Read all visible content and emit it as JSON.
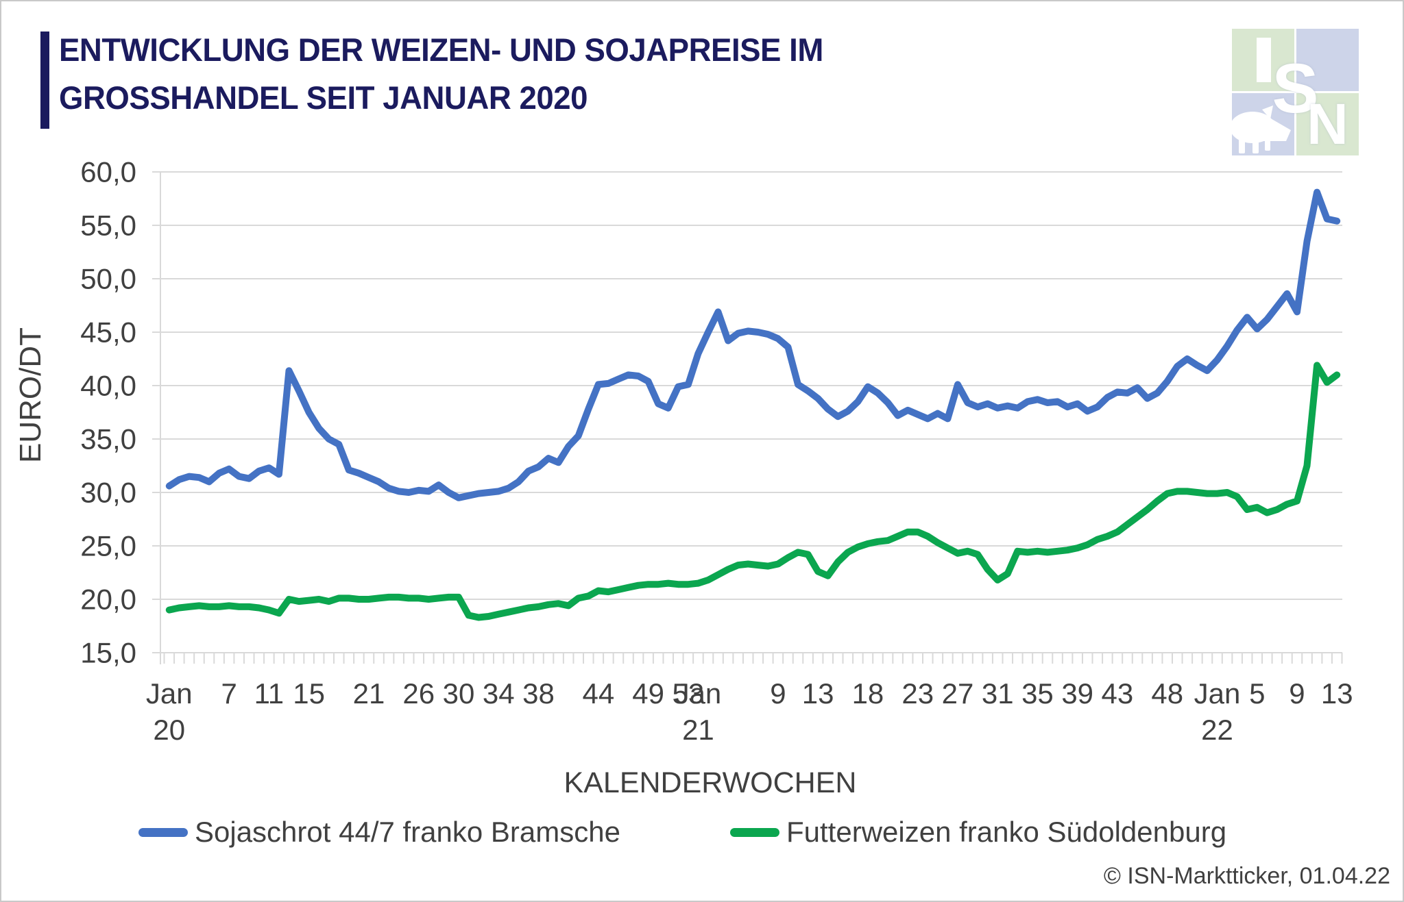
{
  "header": {
    "title_line1": "ENTWICKLUNG DER WEIZEN- UND SOJAPREISE IM",
    "title_line2": "GROSSHANDEL SEIT JANUAR 2020"
  },
  "logo": {
    "letters": [
      "I",
      "S",
      "N"
    ],
    "colors": {
      "green": "#d9e7d0",
      "lavender": "#cdd4e9",
      "glyph": "#ffffff"
    }
  },
  "footer": {
    "copyright": "© ISN-Marktticker, 01.04.22"
  },
  "chart_data": {
    "type": "line",
    "title": "ENTWICKLUNG DER WEIZEN- UND SOJAPREISE IM GROSSHANDEL SEIT JANUAR 2020",
    "xlabel": "KALENDERWOCHEN",
    "ylabel": "EURO/DT",
    "ylim": [
      15,
      60
    ],
    "ytick_step": 5,
    "ytick_labels": [
      "15,0",
      "20,0",
      "25,0",
      "30,0",
      "35,0",
      "40,0",
      "45,0",
      "50,0",
      "55,0",
      "60,0"
    ],
    "grid": "horizontal",
    "legend_position": "bottom",
    "n_points": 118,
    "x_description": "weekly values, calendar week 1/2020 to calendar week 13/2022",
    "x_ticks": [
      {
        "idx": 0,
        "label": "Jan",
        "sub": "20"
      },
      {
        "idx": 6,
        "label": "7"
      },
      {
        "idx": 10,
        "label": "11"
      },
      {
        "idx": 14,
        "label": "15"
      },
      {
        "idx": 20,
        "label": "21"
      },
      {
        "idx": 25,
        "label": "26"
      },
      {
        "idx": 29,
        "label": "30"
      },
      {
        "idx": 33,
        "label": "34"
      },
      {
        "idx": 37,
        "label": "38"
      },
      {
        "idx": 43,
        "label": "44"
      },
      {
        "idx": 48,
        "label": "49"
      },
      {
        "idx": 52,
        "label": "53"
      },
      {
        "idx": 53,
        "label": "Jan",
        "sub": "21"
      },
      {
        "idx": 61,
        "label": "9"
      },
      {
        "idx": 65,
        "label": "13"
      },
      {
        "idx": 70,
        "label": "18"
      },
      {
        "idx": 75,
        "label": "23"
      },
      {
        "idx": 79,
        "label": "27"
      },
      {
        "idx": 83,
        "label": "31"
      },
      {
        "idx": 87,
        "label": "35"
      },
      {
        "idx": 91,
        "label": "39"
      },
      {
        "idx": 95,
        "label": "43"
      },
      {
        "idx": 100,
        "label": "48"
      },
      {
        "idx": 105,
        "label": "Jan",
        "sub": "22"
      },
      {
        "idx": 109,
        "label": "5"
      },
      {
        "idx": 113,
        "label": "9"
      },
      {
        "idx": 117,
        "label": "13"
      }
    ],
    "series": [
      {
        "name": "Sojaschrot 44/7 franko Bramsche",
        "color": "#4472c4",
        "values": [
          30.6,
          31.2,
          31.5,
          31.4,
          31.0,
          31.8,
          32.2,
          31.5,
          31.3,
          32.0,
          32.3,
          31.7,
          41.4,
          39.5,
          37.5,
          36.0,
          35.0,
          34.5,
          32.1,
          31.8,
          31.4,
          31.0,
          30.4,
          30.1,
          30.0,
          30.2,
          30.1,
          30.7,
          30.0,
          29.5,
          29.7,
          29.9,
          30.0,
          30.1,
          30.4,
          31.0,
          32.0,
          32.4,
          33.2,
          32.8,
          34.3,
          35.3,
          37.8,
          40.1,
          40.2,
          40.6,
          41.0,
          40.9,
          40.4,
          38.3,
          37.9,
          39.9,
          40.1,
          43.0,
          45.0,
          46.9,
          44.2,
          44.9,
          45.1,
          45.0,
          44.8,
          44.4,
          43.6,
          40.1,
          39.5,
          38.8,
          37.8,
          37.1,
          37.6,
          38.5,
          39.9,
          39.3,
          38.4,
          37.2,
          37.7,
          37.3,
          36.9,
          37.4,
          36.9,
          40.1,
          38.4,
          38.0,
          38.3,
          37.9,
          38.1,
          37.9,
          38.5,
          38.7,
          38.4,
          38.5,
          38.0,
          38.3,
          37.6,
          38.0,
          38.9,
          39.4,
          39.3,
          39.8,
          38.8,
          39.3,
          40.4,
          41.8,
          42.5,
          41.9,
          41.4,
          42.4,
          43.7,
          45.2,
          46.4,
          45.3,
          46.2,
          47.4,
          48.6,
          46.9,
          53.5,
          58.1,
          55.6,
          55.4
        ]
      },
      {
        "name": "Futterweizen franko Südoldenburg",
        "color": "#0ba64f",
        "values": [
          19.0,
          19.2,
          19.3,
          19.4,
          19.3,
          19.3,
          19.4,
          19.3,
          19.3,
          19.2,
          19.0,
          18.7,
          20.0,
          19.8,
          19.9,
          20.0,
          19.8,
          20.1,
          20.1,
          20.0,
          20.0,
          20.1,
          20.2,
          20.2,
          20.1,
          20.1,
          20.0,
          20.1,
          20.2,
          20.2,
          18.5,
          18.3,
          18.4,
          18.6,
          18.8,
          19.0,
          19.2,
          19.3,
          19.5,
          19.6,
          19.4,
          20.1,
          20.3,
          20.8,
          20.7,
          20.9,
          21.1,
          21.3,
          21.4,
          21.4,
          21.5,
          21.4,
          21.4,
          21.5,
          21.8,
          22.3,
          22.8,
          23.2,
          23.3,
          23.2,
          23.1,
          23.3,
          23.9,
          24.4,
          24.2,
          22.6,
          22.2,
          23.5,
          24.4,
          24.9,
          25.2,
          25.4,
          25.5,
          25.9,
          26.3,
          26.3,
          25.9,
          25.3,
          24.8,
          24.3,
          24.5,
          24.2,
          22.8,
          21.8,
          22.4,
          24.5,
          24.4,
          24.5,
          24.4,
          24.5,
          24.6,
          24.8,
          25.1,
          25.6,
          25.9,
          26.3,
          27.0,
          27.7,
          28.4,
          29.2,
          29.9,
          30.1,
          30.1,
          30.0,
          29.9,
          29.9,
          30.0,
          29.6,
          28.4,
          28.6,
          28.1,
          28.4,
          28.9,
          29.2,
          32.5,
          41.9,
          40.3,
          41.0
        ]
      }
    ],
    "colors": {
      "grid": "#d9d9d9",
      "axis_text": "#404040"
    }
  }
}
